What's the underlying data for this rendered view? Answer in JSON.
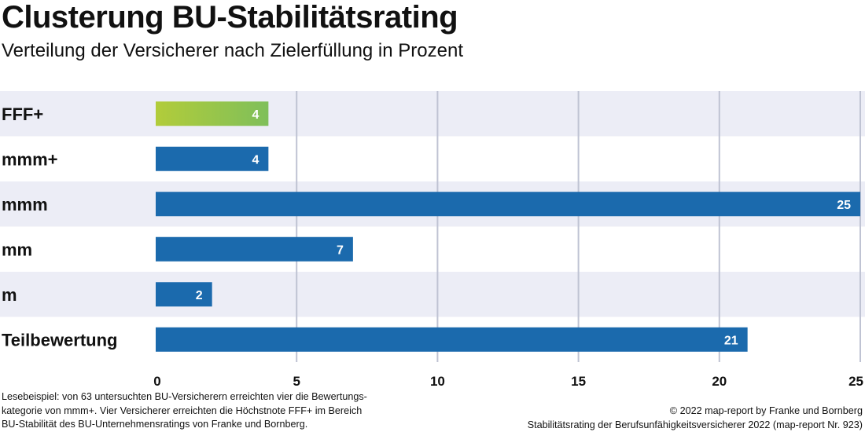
{
  "title": "Clusterung BU-Stabilitätsrating",
  "subtitle": "Verteilung der Versicherer nach Zielerfüllung in Prozent",
  "chart_data": {
    "type": "bar",
    "orientation": "horizontal",
    "categories": [
      "FFF+",
      "mmm+",
      "mmm",
      "mm",
      "m",
      "Teilbewertung"
    ],
    "values": [
      4,
      4,
      25,
      7,
      2,
      21
    ],
    "data_labels": [
      "4",
      "4",
      "25",
      "7",
      "2",
      "21"
    ],
    "xlim": [
      0,
      25
    ],
    "xticks": [
      "0",
      "5",
      "10",
      "15",
      "20",
      "25"
    ],
    "grid": "vertical",
    "colors": {
      "bar": "#1b6aad",
      "highlight_start": "#b2cc3a",
      "highlight_end": "#7fbf5a",
      "row_band": "#ecedf6",
      "grid": "#bfc3d3"
    }
  },
  "footnote": [
    "Lesebeispiel: von 63 untersuchten BU-Versicherern erreichten vier die Bewertungs-",
    "kategorie von mmm+. Vier Versicherer erreichten die Höchstnote FFF+ im Bereich",
    "BU-Stabilität des BU-Unternehmensratings von Franke und Bornberg."
  ],
  "credits": [
    "© 2022 map-report by Franke und Bornberg",
    "Stabilitätsrating der Berufsunfähigkeitsversicherer 2022 (map-report Nr. 923)"
  ]
}
